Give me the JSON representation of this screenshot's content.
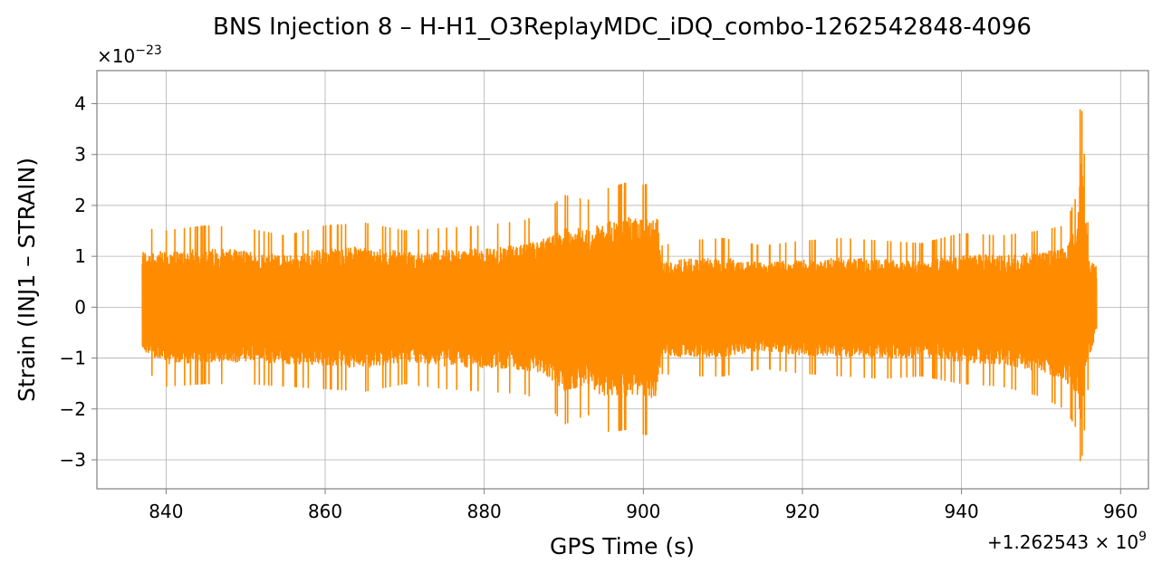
{
  "chart_data": {
    "type": "line",
    "title": "BNS Injection 8 – H-H1_O3ReplayMDC_iDQ_combo-1262542848-4096",
    "xlabel": "GPS Time (s)",
    "ylabel": "Strain (INJ1 – STRAIN)",
    "x_offset_label": "+1.262543 × 10",
    "x_offset_exp": "9",
    "y_scale_label": "×10",
    "y_scale_exp": "−23",
    "xlim": [
      831.3,
      963.5
    ],
    "ylim": [
      -3.57,
      4.65
    ],
    "xticks": [
      840,
      860,
      880,
      900,
      920,
      940,
      960
    ],
    "xtick_labels": [
      "840",
      "860",
      "880",
      "900",
      "920",
      "940",
      "960"
    ],
    "yticks": [
      -3,
      -2,
      -1,
      0,
      1,
      2,
      3,
      4
    ],
    "ytick_labels": [
      "−3",
      "−2",
      "−1",
      "0",
      "1",
      "2",
      "3",
      "4"
    ],
    "grid": true,
    "series": [
      {
        "color": "#ff8c00",
        "x_range": [
          837,
          957
        ],
        "envelope": {
          "x": [
            837,
            840,
            845,
            850,
            855,
            860,
            865,
            870,
            875,
            880,
            885,
            888,
            890,
            893,
            895,
            898,
            900,
            901.8,
            902.2,
            905,
            910,
            915,
            920,
            925,
            930,
            935,
            940,
            945,
            950,
            953,
            954.5,
            955,
            956,
            957
          ],
          "ymax": [
            1.55,
            1.5,
            1.6,
            1.55,
            1.4,
            1.6,
            1.65,
            1.5,
            1.55,
            1.6,
            1.7,
            1.9,
            2.2,
            2.1,
            2.3,
            2.45,
            2.4,
            2.45,
            1.2,
            1.3,
            1.35,
            1.2,
            1.3,
            1.35,
            1.3,
            1.25,
            1.45,
            1.4,
            1.5,
            1.6,
            2.2,
            4.25,
            1.3,
            1.1
          ],
          "ymin": [
            -1.2,
            -1.55,
            -1.5,
            -1.5,
            -1.55,
            -1.6,
            -1.65,
            -1.5,
            -1.6,
            -1.65,
            -1.7,
            -1.9,
            -2.3,
            -2.1,
            -2.45,
            -2.4,
            -2.5,
            -2.5,
            -1.3,
            -1.35,
            -1.35,
            -1.2,
            -1.3,
            -1.35,
            -1.4,
            -1.35,
            -1.5,
            -1.55,
            -1.75,
            -2.0,
            -2.4,
            -3.15,
            -1.4,
            -0.6
          ]
        }
      }
    ]
  }
}
